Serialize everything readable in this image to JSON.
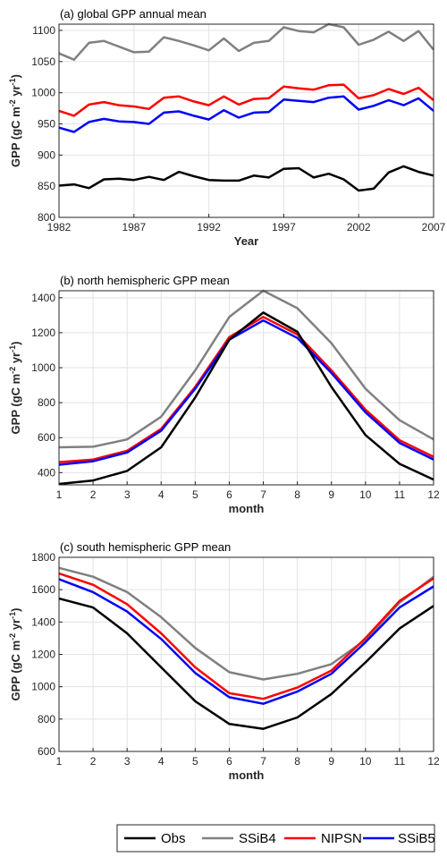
{
  "colors": {
    "Obs": "#000000",
    "SSiB4": "#808080",
    "NIPSN": "#ff0000",
    "SSiB5": "#0000ff"
  },
  "legend": {
    "placement": "bottom",
    "entries": [
      "Obs",
      "SSiB4",
      "NIPSN",
      "SSiB5"
    ]
  },
  "chart_data": [
    {
      "type": "line",
      "title": "(a) global GPP annual mean",
      "xlabel": "Year",
      "ylabel": "GPP (gC m^-2 yr^-1)",
      "xlim": [
        1982,
        2007
      ],
      "ylim": [
        800,
        1110
      ],
      "xticks": [
        1982,
        1987,
        1992,
        1997,
        2002,
        2007
      ],
      "yticks": [
        800,
        850,
        900,
        950,
        1000,
        1050,
        1100
      ],
      "grid": true,
      "x": [
        1982,
        1983,
        1984,
        1985,
        1986,
        1987,
        1988,
        1989,
        1990,
        1991,
        1992,
        1993,
        1994,
        1995,
        1996,
        1997,
        1998,
        1999,
        2000,
        2001,
        2002,
        2003,
        2004,
        2005,
        2006,
        2007
      ],
      "series": [
        {
          "name": "SSiB4",
          "values": [
            1063,
            1053,
            1080,
            1083,
            1074,
            1065,
            1066,
            1089,
            1083,
            1076,
            1068,
            1087,
            1067,
            1080,
            1083,
            1105,
            1099,
            1097,
            1110,
            1105,
            1077,
            1085,
            1098,
            1083,
            1099,
            1069
          ]
        },
        {
          "name": "NIPSN",
          "values": [
            971,
            963,
            981,
            985,
            980,
            978,
            974,
            992,
            994,
            986,
            980,
            994,
            981,
            990,
            991,
            1010,
            1007,
            1005,
            1012,
            1013,
            991,
            996,
            1006,
            998,
            1008,
            988
          ]
        },
        {
          "name": "SSiB5",
          "values": [
            944,
            937,
            953,
            958,
            954,
            953,
            950,
            968,
            970,
            963,
            957,
            972,
            960,
            968,
            969,
            989,
            987,
            985,
            992,
            994,
            973,
            979,
            988,
            980,
            991,
            971
          ]
        },
        {
          "name": "Obs",
          "values": [
            851,
            853,
            847,
            861,
            862,
            860,
            865,
            860,
            873,
            866,
            860,
            859,
            859,
            867,
            864,
            878,
            879,
            864,
            870,
            861,
            843,
            846,
            872,
            882,
            873,
            867
          ]
        }
      ]
    },
    {
      "type": "line",
      "title": "(b) north hemispheric GPP mean",
      "xlabel": "month",
      "ylabel": "GPP (gC m^-2 yr^-1)",
      "xlim": [
        1,
        12
      ],
      "ylim": [
        330,
        1440
      ],
      "xticks": [
        1,
        2,
        3,
        4,
        5,
        6,
        7,
        8,
        9,
        10,
        11,
        12
      ],
      "yticks": [
        400,
        600,
        800,
        1000,
        1200,
        1400
      ],
      "grid": true,
      "x": [
        1,
        2,
        3,
        4,
        5,
        6,
        7,
        8,
        9,
        10,
        11,
        12
      ],
      "series": [
        {
          "name": "SSiB4",
          "values": [
            545,
            548,
            590,
            720,
            985,
            1290,
            1440,
            1340,
            1140,
            880,
            700,
            590
          ]
        },
        {
          "name": "NIPSN",
          "values": [
            460,
            475,
            525,
            650,
            890,
            1175,
            1290,
            1190,
            985,
            760,
            585,
            490
          ]
        },
        {
          "name": "SSiB5",
          "values": [
            445,
            465,
            515,
            640,
            880,
            1160,
            1270,
            1170,
            970,
            745,
            570,
            475
          ]
        },
        {
          "name": "Obs",
          "values": [
            335,
            355,
            410,
            545,
            830,
            1160,
            1315,
            1205,
            890,
            615,
            450,
            360
          ]
        }
      ]
    },
    {
      "type": "line",
      "title": "(c) south hemispheric GPP mean",
      "xlabel": "month",
      "ylabel": "GPP (gC m^-2 yr^-1)",
      "xlim": [
        1,
        12
      ],
      "ylim": [
        600,
        1800
      ],
      "xticks": [
        1,
        2,
        3,
        4,
        5,
        6,
        7,
        8,
        9,
        10,
        11,
        12
      ],
      "yticks": [
        600,
        800,
        1000,
        1200,
        1400,
        1600,
        1800
      ],
      "grid": true,
      "x": [
        1,
        2,
        3,
        4,
        5,
        6,
        7,
        8,
        9,
        10,
        11,
        12
      ],
      "series": [
        {
          "name": "SSiB4",
          "values": [
            1735,
            1680,
            1585,
            1430,
            1240,
            1090,
            1045,
            1080,
            1140,
            1290,
            1520,
            1680
          ]
        },
        {
          "name": "NIPSN",
          "values": [
            1700,
            1630,
            1510,
            1330,
            1120,
            960,
            925,
            995,
            1100,
            1300,
            1530,
            1670
          ]
        },
        {
          "name": "SSiB5",
          "values": [
            1665,
            1585,
            1465,
            1295,
            1085,
            935,
            895,
            970,
            1080,
            1275,
            1490,
            1620
          ]
        },
        {
          "name": "Obs",
          "values": [
            1545,
            1490,
            1330,
            1120,
            910,
            770,
            740,
            810,
            955,
            1150,
            1360,
            1500
          ]
        }
      ]
    }
  ]
}
